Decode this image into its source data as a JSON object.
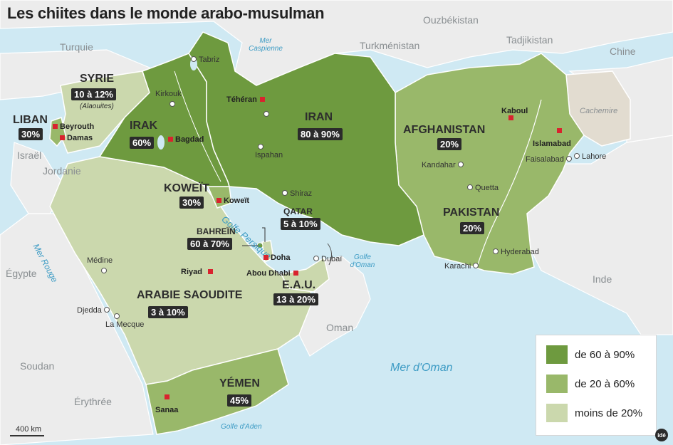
{
  "title": "Les chiites dans le monde arabo-musulman",
  "colors": {
    "sea": "#cfe9f3",
    "land_outside": "#ececec",
    "high": "#6e9a3f",
    "mid": "#99b86a",
    "low": "#cbd8ad",
    "kashmir": "#e2dcd0",
    "capital": "#d9232e"
  },
  "neighbors": {
    "turquie": "Turquie",
    "ouzbekistan": "Ouzbékistan",
    "turkmenistan": "Turkménistan",
    "tadjikistan": "Tadjikistan",
    "chine": "Chine",
    "israel": "Israël",
    "jordanie": "Jordanie",
    "egypte": "Égypte",
    "soudan": "Soudan",
    "erythree": "Érythrée",
    "inde": "Inde",
    "oman": "Oman",
    "cachemire": "Cachemire"
  },
  "countries": {
    "syrie": {
      "name": "SYRIE",
      "pct": "10 à 12%",
      "note": "(Alaouites)"
    },
    "liban": {
      "name": "LIBAN",
      "pct": "30%"
    },
    "irak": {
      "name": "IRAK",
      "pct": "60%"
    },
    "iran": {
      "name": "IRAN",
      "pct": "80 à 90%"
    },
    "afghanistan": {
      "name": "AFGHANISTAN",
      "pct": "20%"
    },
    "pakistan": {
      "name": "PAKISTAN",
      "pct": "20%"
    },
    "koweit": {
      "name": "KOWEÏT",
      "pct": "30%"
    },
    "qatar": {
      "name": "QATAR",
      "pct": "5 à 10%"
    },
    "bahrein": {
      "name": "BAHREÏN",
      "pct": "60 à 70%"
    },
    "eau": {
      "name": "E.A.U.",
      "pct": "13 à 20%"
    },
    "arabie": {
      "name": "ARABIE SAOUDITE",
      "pct": "3 à 10%"
    },
    "yemen": {
      "name": "YÉMEN",
      "pct": "45%"
    }
  },
  "capitals": {
    "beyrouth": "Beyrouth",
    "damas": "Damas",
    "bagdad": "Bagdad",
    "teheran": "Téhéran",
    "kaboul": "Kaboul",
    "islamabad": "Islamabad",
    "koweit": "Koweït",
    "doha": "Doha",
    "abou_dhabi": "Abou Dhabi",
    "riyad": "Riyad",
    "sanaa": "Sanaa"
  },
  "cities": {
    "tabriz": "Tabriz",
    "kirkouk": "Kirkouk",
    "ispahan": "Ispahan",
    "shiraz": "Shiraz",
    "kandahar": "Kandahar",
    "quetta": "Quetta",
    "faisalabad": "Faisalabad",
    "lahore": "Lahore",
    "hyderabad": "Hyderabad",
    "karachi": "Karachi",
    "dubai": "Dubaï",
    "medine": "Médine",
    "djedda": "Djedda",
    "la_mecque": "La Mecque"
  },
  "seas": {
    "caspienne": "Mer Caspienne",
    "golfe_persique": "Golfe Persique",
    "golfe_oman": "Golfe d'Oman",
    "mer_oman": "Mer d'Oman",
    "mer_rouge": "Mer Rouge",
    "golfe_aden": "Golfe d'Aden"
  },
  "legend": [
    {
      "label": "de 60 à 90%",
      "color": "#6e9a3f"
    },
    {
      "label": "de 20 à 60%",
      "color": "#99b86a"
    },
    {
      "label": "moins de 20%",
      "color": "#cbd8ad"
    }
  ],
  "scale": "400 km",
  "logo": "idé"
}
